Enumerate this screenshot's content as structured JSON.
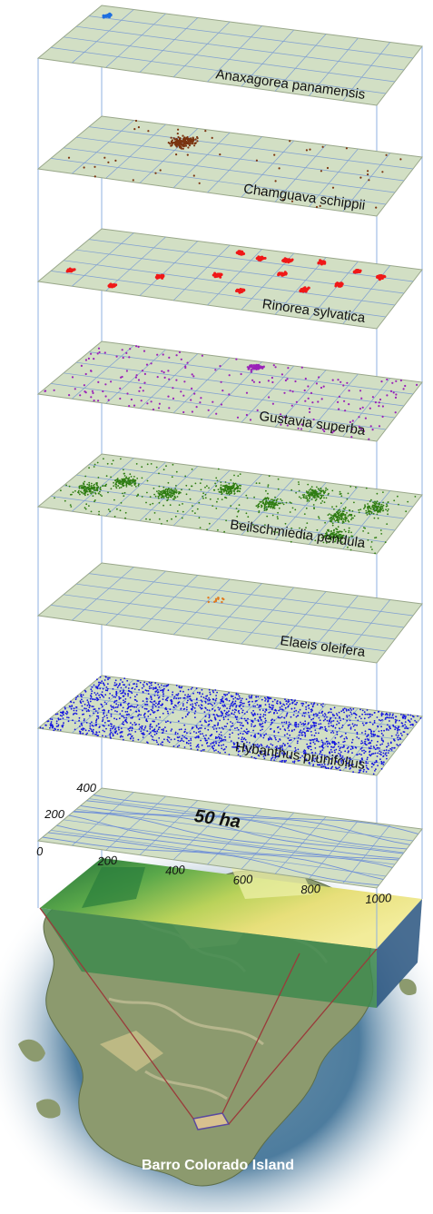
{
  "layers": [
    {
      "id": "anaxagorea",
      "label": "Anaxagorea panamensis",
      "color": "#1e6fe0",
      "pattern": "tiny_cluster"
    },
    {
      "id": "chamguava",
      "label": "Chamguava schippii",
      "color": "#7a3410",
      "pattern": "single_cluster"
    },
    {
      "id": "rinorea",
      "label": "Rinorea sylvatica",
      "color": "#f01818",
      "pattern": "many_clusters"
    },
    {
      "id": "gustavia",
      "label": "Gustavia superba",
      "color": "#9a22b8",
      "pattern": "scattered_cluster"
    },
    {
      "id": "beilschmiedia",
      "label": "Beilschmiedia pendula",
      "color": "#2f7d12",
      "pattern": "dense_patches"
    },
    {
      "id": "elaeis",
      "label": "Elaeis oleifera",
      "color": "#e07a20",
      "pattern": "few_points"
    },
    {
      "id": "hybanthus",
      "label": "Hybanthus prunifolius",
      "color": "#1414e0",
      "pattern": "very_dense"
    }
  ],
  "plot_grid": {
    "area_label": "50 ha",
    "x_ticks": [
      "0",
      "200",
      "400",
      "600",
      "800",
      "1000"
    ],
    "y_ticks": [
      "0",
      "200",
      "400"
    ]
  },
  "island_label": "Barro Colorado Island",
  "colors": {
    "plane_fill": "#d2dfc4",
    "plane_edge": "#99a78a",
    "grid_line": "#7f9fd2",
    "contour": "#6f8fd8",
    "guide_line": "#8fb0e0"
  }
}
